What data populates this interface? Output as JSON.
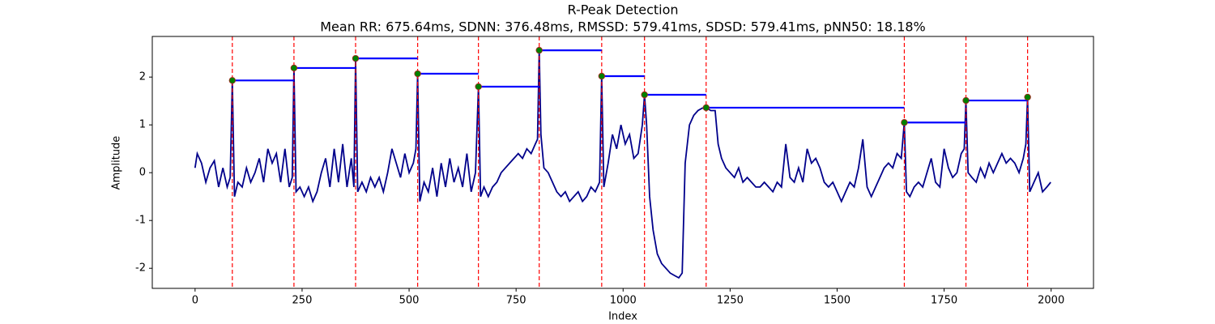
{
  "chart_data": {
    "type": "line",
    "title": "R-Peak Detection",
    "subtitle": "Mean RR: 675.64ms, SDNN: 376.48ms, RMSSD: 579.41ms, SDSD: 579.41ms, pNN50: 18.18%",
    "x_label": "Index",
    "y_label": "Amplitude",
    "xlim": [
      -100,
      2099
    ],
    "ylim": [
      -2.42,
      2.85
    ],
    "xticks": [
      0,
      250,
      500,
      750,
      1000,
      1250,
      1500,
      1750,
      2000
    ],
    "yticks": [
      -2,
      -1,
      0,
      1,
      2
    ],
    "series": [
      {
        "color": "#00008b",
        "x": [
          0,
          5,
          15,
          25,
          35,
          45,
          55,
          65,
          75,
          82,
          87,
          92,
          100,
          110,
          120,
          130,
          140,
          150,
          160,
          170,
          180,
          190,
          200,
          210,
          220,
          227,
          231,
          236,
          245,
          255,
          265,
          275,
          285,
          295,
          305,
          315,
          325,
          335,
          345,
          355,
          365,
          371,
          375,
          380,
          390,
          400,
          410,
          420,
          430,
          440,
          450,
          460,
          470,
          480,
          490,
          500,
          510,
          516,
          520,
          525,
          535,
          545,
          555,
          565,
          575,
          585,
          595,
          605,
          615,
          625,
          635,
          645,
          655,
          662,
          667,
          675,
          685,
          695,
          705,
          715,
          725,
          735,
          745,
          755,
          765,
          775,
          785,
          795,
          800,
          804,
          808,
          815,
          825,
          835,
          845,
          855,
          865,
          875,
          885,
          895,
          905,
          915,
          925,
          935,
          945,
          950,
          955,
          965,
          975,
          985,
          995,
          1005,
          1015,
          1025,
          1035,
          1045,
          1050,
          1055,
          1062,
          1070,
          1080,
          1090,
          1100,
          1110,
          1120,
          1130,
          1138,
          1145,
          1155,
          1165,
          1175,
          1185,
          1194,
          1205,
          1215,
          1222,
          1230,
          1240,
          1250,
          1260,
          1270,
          1280,
          1290,
          1300,
          1310,
          1320,
          1330,
          1340,
          1350,
          1360,
          1370,
          1380,
          1390,
          1400,
          1410,
          1420,
          1430,
          1440,
          1450,
          1460,
          1470,
          1480,
          1490,
          1500,
          1510,
          1520,
          1530,
          1540,
          1550,
          1560,
          1570,
          1580,
          1590,
          1600,
          1610,
          1620,
          1630,
          1640,
          1650,
          1657,
          1662,
          1670,
          1680,
          1690,
          1700,
          1710,
          1720,
          1730,
          1740,
          1750,
          1760,
          1770,
          1780,
          1790,
          1797,
          1801,
          1806,
          1815,
          1825,
          1835,
          1845,
          1855,
          1865,
          1875,
          1885,
          1895,
          1905,
          1915,
          1925,
          1935,
          1941,
          1945,
          1950,
          1960,
          1970,
          1980,
          1990,
          1999
        ],
        "values": [
          0.1,
          0.4,
          0.2,
          -0.2,
          0.1,
          0.25,
          -0.3,
          0.1,
          -0.3,
          -0.1,
          1.93,
          -0.5,
          -0.2,
          -0.3,
          0.1,
          -0.2,
          0.0,
          0.3,
          -0.2,
          0.5,
          0.2,
          0.4,
          -0.2,
          0.5,
          -0.3,
          -0.1,
          2.19,
          -0.4,
          -0.3,
          -0.5,
          -0.3,
          -0.6,
          -0.4,
          0.0,
          0.3,
          -0.3,
          0.5,
          -0.2,
          0.6,
          -0.3,
          0.3,
          -0.3,
          2.39,
          -0.4,
          -0.2,
          -0.4,
          -0.1,
          -0.3,
          -0.1,
          -0.4,
          0.0,
          0.5,
          0.2,
          -0.1,
          0.4,
          0.0,
          0.2,
          0.5,
          2.07,
          -0.6,
          -0.2,
          -0.4,
          0.1,
          -0.5,
          0.2,
          -0.3,
          0.3,
          -0.2,
          0.1,
          -0.3,
          0.4,
          -0.4,
          0.0,
          1.8,
          -0.5,
          -0.3,
          -0.5,
          -0.3,
          -0.2,
          0.0,
          0.1,
          0.2,
          0.3,
          0.4,
          0.3,
          0.5,
          0.4,
          0.6,
          0.7,
          2.56,
          0.8,
          0.1,
          0.0,
          -0.2,
          -0.4,
          -0.5,
          -0.4,
          -0.6,
          -0.5,
          -0.4,
          -0.6,
          -0.5,
          -0.3,
          -0.4,
          -0.2,
          2.02,
          -0.3,
          0.2,
          0.8,
          0.5,
          1.0,
          0.6,
          0.8,
          0.3,
          0.4,
          1.0,
          1.63,
          1.0,
          -0.5,
          -1.2,
          -1.7,
          -1.9,
          -2.0,
          -2.1,
          -2.15,
          -2.2,
          -2.1,
          0.2,
          1.0,
          1.2,
          1.3,
          1.35,
          1.36,
          1.3,
          1.3,
          0.6,
          0.3,
          0.1,
          0.0,
          -0.1,
          0.1,
          -0.2,
          -0.1,
          -0.2,
          -0.3,
          -0.3,
          -0.2,
          -0.3,
          -0.4,
          -0.2,
          -0.3,
          0.6,
          -0.1,
          -0.2,
          0.1,
          -0.2,
          0.5,
          0.2,
          0.3,
          0.1,
          -0.2,
          -0.3,
          -0.2,
          -0.4,
          -0.6,
          -0.4,
          -0.2,
          -0.3,
          0.1,
          0.7,
          -0.3,
          -0.5,
          -0.3,
          -0.1,
          0.1,
          0.2,
          0.1,
          0.4,
          0.3,
          1.05,
          -0.4,
          -0.5,
          -0.3,
          -0.2,
          -0.3,
          0.0,
          0.3,
          -0.2,
          -0.3,
          0.5,
          0.1,
          -0.1,
          0.0,
          0.4,
          0.5,
          1.51,
          0.0,
          -0.1,
          -0.2,
          0.1,
          -0.1,
          0.2,
          0.0,
          0.2,
          0.4,
          0.2,
          0.3,
          0.2,
          0.0,
          0.3,
          0.6,
          1.58,
          -0.4,
          -0.2,
          0.0,
          -0.4,
          -0.3,
          -0.2
        ]
      }
    ],
    "peaks": {
      "color": "#008000",
      "edge_color": "#b22222",
      "rr_color": "#0000ff",
      "line_color": "#ff0000",
      "x": [
        87,
        231,
        375,
        520,
        662,
        804,
        950,
        1050,
        1194,
        1657,
        1801,
        1945
      ],
      "values": [
        1.93,
        2.19,
        2.39,
        2.07,
        1.8,
        2.56,
        2.02,
        1.63,
        1.36,
        1.05,
        1.51,
        1.58
      ]
    }
  }
}
